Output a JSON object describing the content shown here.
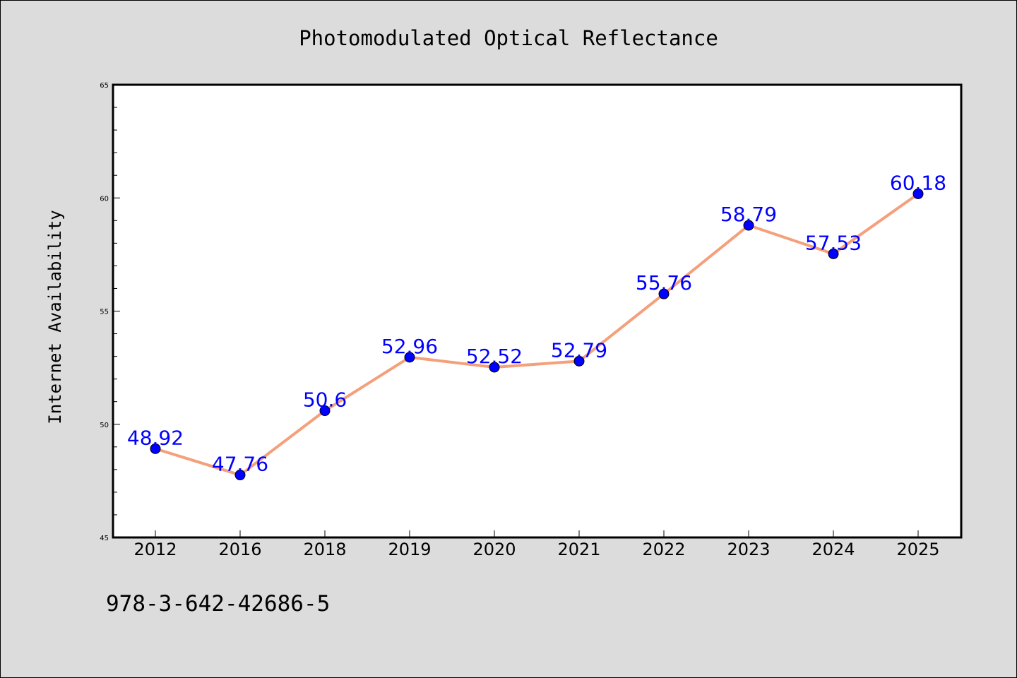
{
  "chart_data": {
    "type": "line",
    "title": "Photomodulated Optical Reflectance",
    "xlabel": "",
    "ylabel": "Internet Availability",
    "categories": [
      "2012",
      "2016",
      "2018",
      "2019",
      "2020",
      "2021",
      "2022",
      "2023",
      "2024",
      "2025"
    ],
    "series": [
      {
        "values": [
          48.92,
          47.76,
          50.6,
          52.96,
          52.52,
          52.79,
          55.76,
          58.79,
          57.53,
          60.18
        ],
        "labels": [
          "48.92",
          "47.76",
          "50.6",
          "52.96",
          "52.52",
          "52.79",
          "55.76",
          "58.79",
          "57.53",
          "60.18"
        ],
        "line_color": "#f4a07a",
        "marker_color": "#0000ff"
      }
    ],
    "ylim": [
      45,
      65
    ],
    "yticks": [
      "45",
      "50",
      "55",
      "60",
      "65"
    ],
    "grid": false,
    "legend": "none"
  },
  "annotation": {
    "isbn": "978-3-642-42686-5"
  },
  "colors": {
    "background": "#dcdcdc",
    "plot_background": "#ffffff",
    "label_color": "#0000ff"
  }
}
